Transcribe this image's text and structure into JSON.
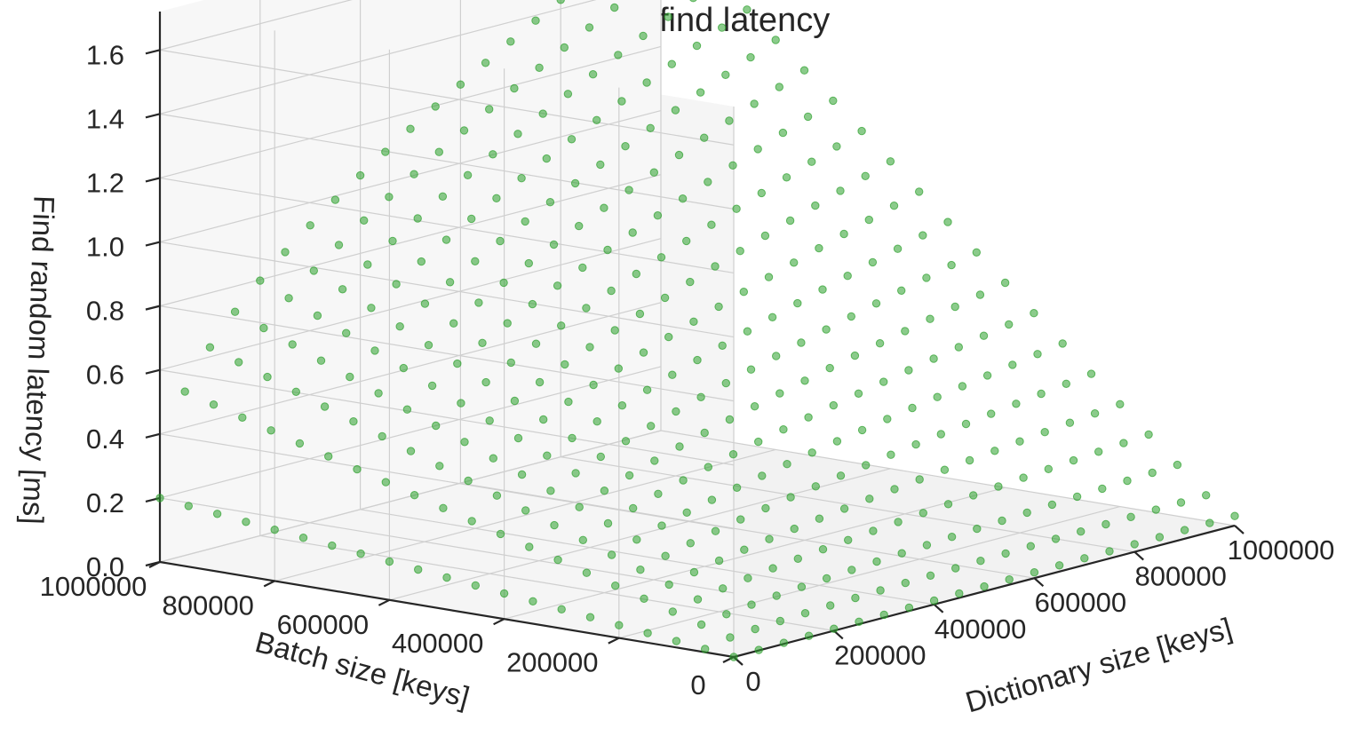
{
  "chart_data": {
    "type": "scatter",
    "projection": "3d",
    "title": "Random find latency",
    "xlabel": "Dictionary size [keys]",
    "ylabel": "Batch size [keys]",
    "zlabel": "Find random latency [ms]",
    "xlim": [
      0,
      1000000
    ],
    "ylim": [
      0,
      1000000
    ],
    "zlim": [
      0,
      1.6
    ],
    "x_ticks": [
      "0",
      "200000",
      "400000",
      "600000",
      "800000",
      "1000000"
    ],
    "y_ticks": [
      "0",
      "200000",
      "400000",
      "600000",
      "800000",
      "1000000"
    ],
    "z_ticks": [
      "0.0",
      "0.2",
      "0.4",
      "0.6",
      "0.8",
      "1.0",
      "1.2",
      "1.4",
      "1.6"
    ],
    "grid": true,
    "marker_color": "#2ca02c",
    "grid_step": 20000,
    "surface": {
      "description_points": [
        {
          "dictionary_size": 0,
          "batch_size": 0,
          "latency_ms": 0.0
        },
        {
          "dictionary_size": 1000000,
          "batch_size": 0,
          "latency_ms": 0.03
        },
        {
          "dictionary_size": 0,
          "batch_size": 1000000,
          "latency_ms": 0.2
        },
        {
          "dictionary_size": 1000000,
          "batch_size": 1000000,
          "latency_ms": 1.6
        },
        {
          "dictionary_size": 100000,
          "batch_size": 1000000,
          "latency_ms": 0.7
        },
        {
          "dictionary_size": 500000,
          "batch_size": 1000000,
          "latency_ms": 1.3
        }
      ]
    }
  }
}
